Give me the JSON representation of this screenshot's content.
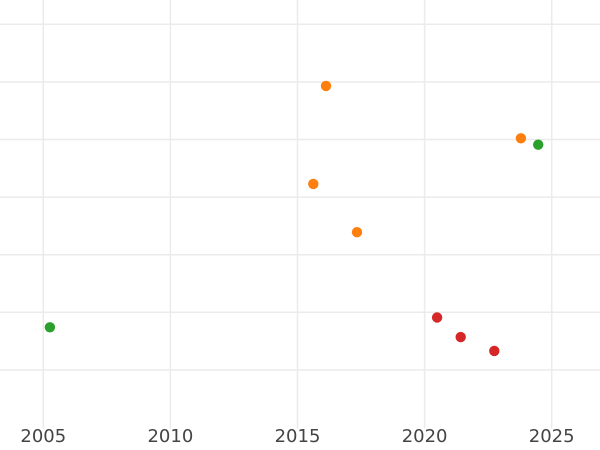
{
  "chart_data": {
    "type": "scatter",
    "title": "",
    "xlabel": "",
    "ylabel": "",
    "grid": true,
    "legend_visible": false,
    "x_ticks": [
      {
        "value": 2005,
        "label": "2005"
      },
      {
        "value": 2010,
        "label": "2010"
      },
      {
        "value": 2015,
        "label": "2015"
      },
      {
        "value": 2020,
        "label": "2020"
      },
      {
        "value": 2025,
        "label": "2025"
      }
    ],
    "xlim": [
      2003.3,
      2026.9
    ],
    "ylim": [
      0,
      7.4
    ],
    "y_ticks_visible": false,
    "y_value_note": "y axis shows no labels; y values estimated in horizontal-gridline units, 0 at plot bottom edge, 1 per gridline",
    "series": [
      {
        "name": "green",
        "color": "#2ca02c",
        "points": [
          {
            "x": 2005.26,
            "y": 1.74
          },
          {
            "x": 2024.47,
            "y": 4.91
          }
        ]
      },
      {
        "name": "orange",
        "color": "#ff7f0e",
        "points": [
          {
            "x": 2015.62,
            "y": 4.23
          },
          {
            "x": 2016.12,
            "y": 5.93
          },
          {
            "x": 2017.34,
            "y": 3.39
          },
          {
            "x": 2023.79,
            "y": 5.02
          }
        ]
      },
      {
        "name": "red",
        "color": "#d62728",
        "points": [
          {
            "x": 2020.49,
            "y": 1.91
          },
          {
            "x": 2021.42,
            "y": 1.57
          },
          {
            "x": 2022.74,
            "y": 1.33
          }
        ]
      }
    ],
    "colors": {
      "background": "#ffffff",
      "gridline": "#ebebeb",
      "tick_label": "#444444"
    },
    "marker_radius_px": 5.2
  }
}
